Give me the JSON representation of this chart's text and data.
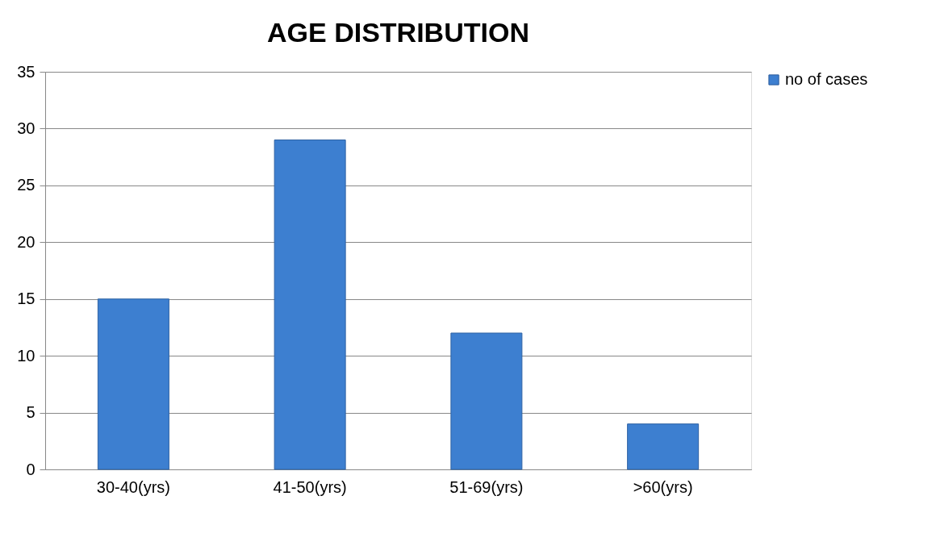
{
  "chart_data": {
    "type": "bar",
    "title": "AGE DISTRIBUTION",
    "categories": [
      "30-40(yrs)",
      "41-50(yrs)",
      "51-69(yrs)",
      ">60(yrs)"
    ],
    "series": [
      {
        "name": "no of cases",
        "color": "#3d7fd0",
        "values": [
          15,
          29,
          12,
          4
        ]
      }
    ],
    "ylim": [
      0,
      35
    ],
    "yticks": [
      0,
      5,
      10,
      15,
      20,
      25,
      30,
      35
    ],
    "grid": "y",
    "legend": "right"
  }
}
